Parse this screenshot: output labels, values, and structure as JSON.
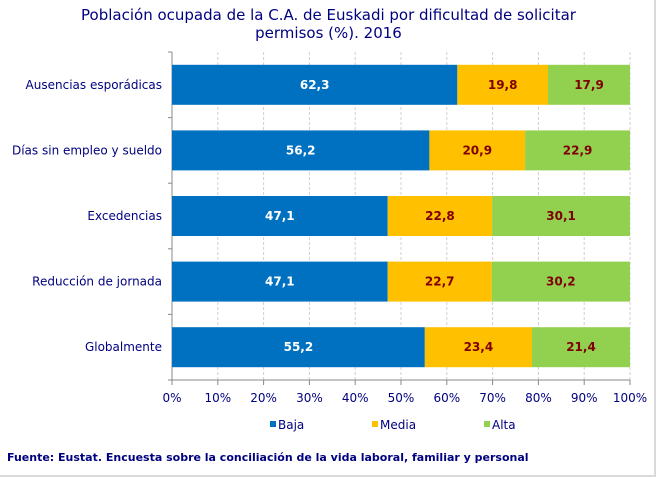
{
  "chart_data": {
    "type": "bar",
    "orientation": "horizontal",
    "stacked": "percent",
    "title": "Población ocupada de la C.A. de Euskadi por dificultad de solicitar permisos (%). 2016",
    "title_lines": [
      "Población ocupada de la C.A. de Euskadi por dificultad de solicitar",
      "permisos (%). 2016"
    ],
    "categories": [
      "Ausencias esporádicas",
      "Días sin empleo y sueldo",
      "Excedencias",
      "Reducción de jornada",
      "Globalmente"
    ],
    "series": [
      {
        "name": "Baja",
        "color": "#0070c0",
        "label_color": "#ffffff",
        "values": [
          62.3,
          56.2,
          47.1,
          47.1,
          55.2
        ]
      },
      {
        "name": "Media",
        "color": "#ffc000",
        "label_color": "#7f0000",
        "values": [
          19.8,
          20.9,
          22.8,
          22.7,
          23.4
        ]
      },
      {
        "name": "Alta",
        "color": "#92d050",
        "label_color": "#7f0000",
        "values": [
          17.9,
          22.9,
          30.1,
          30.2,
          21.4
        ]
      }
    ],
    "xlim": [
      0,
      100
    ],
    "xticks": [
      "0%",
      "10%",
      "20%",
      "30%",
      "40%",
      "50%",
      "60%",
      "70%",
      "80%",
      "90%",
      "100%"
    ],
    "grid": "vertical dashed",
    "legend": "bottom",
    "decimal_separator": ","
  },
  "source": "Fuente: Eustat. Encuesta sobre la conciliación de la vida laboral, familiar y personal"
}
